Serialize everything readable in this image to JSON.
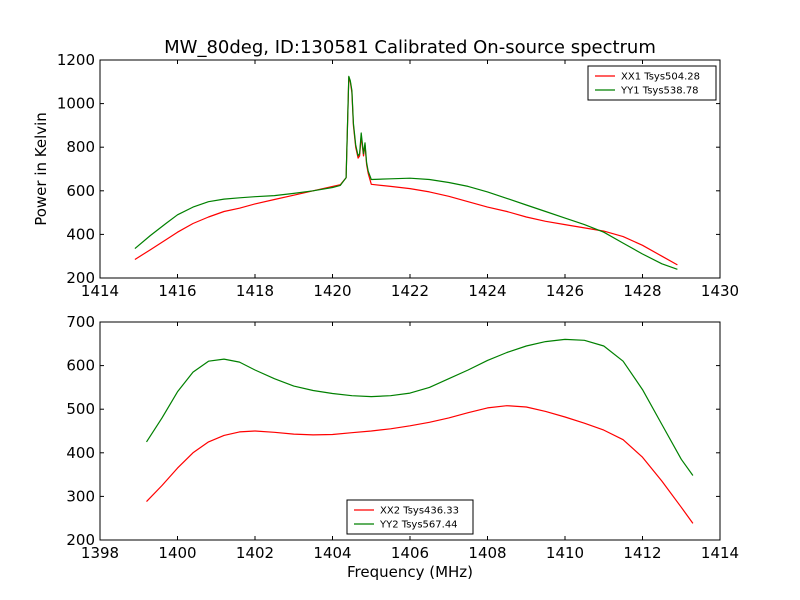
{
  "title": "MW_80deg, ID:130581 Calibrated On-source spectrum",
  "chart_data": [
    {
      "type": "line",
      "ylabel": "Power in Kelvin",
      "xlabel": "",
      "xlim": [
        1414,
        1430
      ],
      "ylim": [
        200,
        1200
      ],
      "xticks": [
        1414,
        1416,
        1418,
        1420,
        1422,
        1424,
        1426,
        1428,
        1430
      ],
      "yticks": [
        200,
        400,
        600,
        800,
        1000,
        1200
      ],
      "legend_position": "top-right",
      "series": [
        {
          "name": "XX1 Tsys504.28",
          "color": "#ff0000",
          "x": [
            1414.9,
            1415.3,
            1415.7,
            1416.0,
            1416.4,
            1416.8,
            1417.2,
            1417.6,
            1418.0,
            1418.5,
            1419.0,
            1419.5,
            1420.0,
            1420.2,
            1420.35,
            1420.42,
            1420.46,
            1420.5,
            1420.54,
            1420.6,
            1420.66,
            1420.7,
            1420.74,
            1420.8,
            1420.84,
            1420.88,
            1420.92,
            1421.0,
            1421.5,
            1422.0,
            1422.5,
            1423.0,
            1423.5,
            1424.0,
            1424.5,
            1425.0,
            1425.5,
            1426.0,
            1426.5,
            1427.0,
            1427.5,
            1428.0,
            1428.5,
            1428.9
          ],
          "y": [
            285,
            330,
            375,
            410,
            450,
            480,
            505,
            520,
            540,
            560,
            580,
            600,
            620,
            628,
            660,
            1120,
            1100,
            1050,
            900,
            800,
            750,
            760,
            850,
            760,
            810,
            720,
            680,
            630,
            620,
            610,
            595,
            575,
            550,
            525,
            505,
            480,
            460,
            445,
            430,
            415,
            390,
            350,
            300,
            260
          ]
        },
        {
          "name": "YY1 Tsys538.78",
          "color": "#008000",
          "x": [
            1414.9,
            1415.3,
            1415.7,
            1416.0,
            1416.4,
            1416.8,
            1417.2,
            1417.6,
            1418.0,
            1418.5,
            1419.0,
            1419.5,
            1420.0,
            1420.2,
            1420.35,
            1420.42,
            1420.46,
            1420.5,
            1420.54,
            1420.6,
            1420.66,
            1420.7,
            1420.74,
            1420.8,
            1420.84,
            1420.88,
            1420.92,
            1421.0,
            1421.5,
            1422.0,
            1422.5,
            1423.0,
            1423.5,
            1424.0,
            1424.5,
            1425.0,
            1425.5,
            1426.0,
            1426.5,
            1427.0,
            1427.5,
            1428.0,
            1428.5,
            1428.9
          ],
          "y": [
            335,
            395,
            450,
            490,
            525,
            550,
            562,
            568,
            573,
            578,
            588,
            600,
            615,
            625,
            660,
            1125,
            1105,
            1060,
            910,
            810,
            760,
            770,
            865,
            770,
            820,
            730,
            690,
            652,
            655,
            658,
            652,
            638,
            620,
            595,
            565,
            535,
            505,
            475,
            445,
            410,
            360,
            310,
            265,
            240
          ]
        }
      ]
    },
    {
      "type": "line",
      "xlabel": "Frequency (MHz)",
      "ylabel": "",
      "xlim": [
        1398,
        1414
      ],
      "ylim": [
        200,
        700
      ],
      "xticks": [
        1398,
        1400,
        1402,
        1404,
        1406,
        1408,
        1410,
        1412,
        1414
      ],
      "yticks": [
        200,
        300,
        400,
        500,
        600,
        700
      ],
      "legend_position": "bottom-center",
      "series": [
        {
          "name": "XX2 Tsys436.33",
          "color": "#ff0000",
          "x": [
            1399.2,
            1399.6,
            1400.0,
            1400.4,
            1400.8,
            1401.2,
            1401.6,
            1402.0,
            1402.5,
            1403.0,
            1403.5,
            1404.0,
            1404.5,
            1405.0,
            1405.5,
            1406.0,
            1406.5,
            1407.0,
            1407.5,
            1408.0,
            1408.5,
            1409.0,
            1409.5,
            1410.0,
            1410.5,
            1411.0,
            1411.5,
            1412.0,
            1412.5,
            1413.0,
            1413.3
          ],
          "y": [
            288,
            325,
            365,
            400,
            425,
            440,
            448,
            450,
            447,
            443,
            441,
            442,
            446,
            450,
            455,
            462,
            470,
            480,
            492,
            503,
            508,
            505,
            495,
            482,
            468,
            452,
            430,
            390,
            335,
            275,
            238
          ]
        },
        {
          "name": "YY2 Tsys567.44",
          "color": "#008000",
          "x": [
            1399.2,
            1399.6,
            1400.0,
            1400.4,
            1400.8,
            1401.2,
            1401.6,
            1402.0,
            1402.5,
            1403.0,
            1403.5,
            1404.0,
            1404.5,
            1405.0,
            1405.5,
            1406.0,
            1406.5,
            1407.0,
            1407.5,
            1408.0,
            1408.5,
            1409.0,
            1409.5,
            1410.0,
            1410.5,
            1411.0,
            1411.5,
            1412.0,
            1412.5,
            1413.0,
            1413.3
          ],
          "y": [
            425,
            480,
            540,
            585,
            610,
            615,
            608,
            590,
            570,
            553,
            543,
            536,
            531,
            529,
            531,
            537,
            550,
            570,
            590,
            612,
            630,
            645,
            655,
            660,
            658,
            645,
            610,
            545,
            465,
            385,
            348
          ]
        }
      ]
    }
  ]
}
